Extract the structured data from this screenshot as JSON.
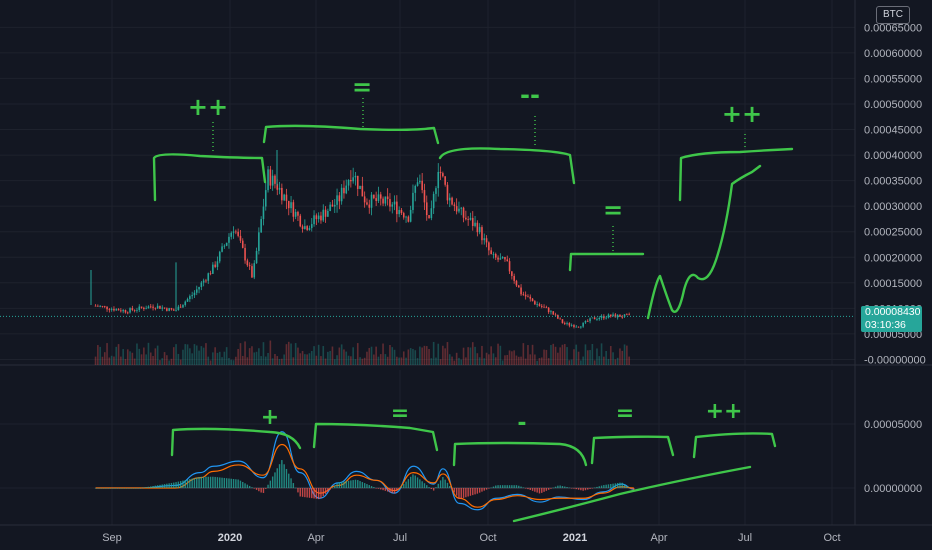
{
  "currency": "BTC",
  "last_price": "0.00008430",
  "countdown": "03:10:36",
  "colors": {
    "background": "#131722",
    "up": "#26a69a",
    "down": "#ef5350",
    "annotation": "#3fc64a",
    "macd": "#2196f3",
    "signal": "#ff6d00",
    "last_price": "#26a69a"
  },
  "chart_data": [
    {
      "type": "candlestick",
      "title": "",
      "x_ticks": [
        "Sep",
        "2020",
        "Apr",
        "Jul",
        "Oct",
        "2021",
        "Apr",
        "Jul",
        "Oct"
      ],
      "bold_x_ticks": [
        "2020",
        "2021"
      ],
      "y_ticks": [
        "0.00065000",
        "0.00060000",
        "0.00055000",
        "0.00050000",
        "0.00045000",
        "0.00040000",
        "0.00035000",
        "0.00030000",
        "0.00025000",
        "0.00020000",
        "0.00015000",
        "0.00010000",
        "0.00005000",
        "-0.00000000"
      ],
      "ylim": [
        -5e-06,
        0.00068
      ],
      "grid": true,
      "series": [
        {
          "x": [
            "2019-08-15",
            "2019-09-15",
            "2019-10-15",
            "2019-11-05",
            "2019-11-25",
            "2019-12-15",
            "2020-01-05",
            "2020-01-25",
            "2020-02-10",
            "2020-02-20",
            "2020-03-05",
            "2020-03-20",
            "2020-04-05",
            "2020-04-25",
            "2020-05-10",
            "2020-05-25",
            "2020-06-10",
            "2020-06-25",
            "2020-07-10",
            "2020-07-20",
            "2020-08-01",
            "2020-08-10",
            "2020-08-20",
            "2020-09-05",
            "2020-09-20",
            "2020-10-05",
            "2020-10-20",
            "2020-11-05",
            "2020-11-20",
            "2020-12-05",
            "2020-12-20",
            "2021-01-05",
            "2021-01-20",
            "2021-02-05",
            "2021-02-20",
            "2021-03-01"
          ],
          "close": [
            0.000105,
            9.5e-05,
            0.000105,
            9.5e-05,
            0.00013,
            0.00018,
            0.00026,
            0.00016,
            0.00036,
            0.00034,
            0.0003,
            0.00026,
            0.00028,
            0.00031,
            0.00037,
            0.00031,
            0.00031,
            0.0003,
            0.00028,
            0.00036,
            0.00026,
            0.00038,
            0.00032,
            0.00028,
            0.00026,
            0.0002,
            0.00019,
            0.00013,
            0.00011,
            9.5e-05,
            7e-05,
            6.5e-05,
            8e-05,
            8.5e-05,
            8.5e-05,
            8.43e-05
          ]
        }
      ]
    },
    {
      "type": "line",
      "title": "",
      "y_ticks": [
        "0.00005000",
        "0.00000000"
      ],
      "ylim": [
        -3.3e-05,
        9.2e-05
      ],
      "x": [
        "2019-08-15",
        "2019-10-01",
        "2019-11-05",
        "2019-12-01",
        "2019-12-15",
        "2020-01-10",
        "2020-02-05",
        "2020-02-25",
        "2020-03-15",
        "2020-04-05",
        "2020-04-25",
        "2020-05-15",
        "2020-06-05",
        "2020-06-25",
        "2020-07-15",
        "2020-08-05",
        "2020-08-15",
        "2020-09-01",
        "2020-09-20",
        "2020-10-10",
        "2020-11-01",
        "2020-11-25",
        "2020-12-15",
        "2021-01-10",
        "2021-01-31",
        "2021-02-20",
        "2021-03-05"
      ],
      "series": [
        {
          "values": [
            0.0,
            0.0,
            2e-06,
            1.2e-05,
            1.7e-05,
            2.1e-05,
            8e-06,
            4.4e-05,
            1.2e-05,
            -8e-06,
            4e-06,
            1.3e-05,
            6e-06,
            -4e-06,
            1.7e-05,
            3e-06,
            1.5e-05,
            -1.2e-05,
            -1.7e-05,
            -8e-06,
            -5e-06,
            -1.1e-05,
            -7e-06,
            -9e-06,
            -3e-06,
            3e-06,
            -1e-06
          ]
        },
        {
          "values": [
            0.0,
            0.0,
            0.0,
            8e-06,
            1.3e-05,
            1.8e-05,
            1e-05,
            3.4e-05,
            1.5e-05,
            -4e-06,
            2e-06,
            1e-05,
            6e-06,
            -2e-06,
            1.2e-05,
            4e-06,
            1.1e-05,
            -8e-06,
            -1.5e-05,
            -9e-06,
            -6e-06,
            -9e-06,
            -8e-06,
            -8e-06,
            -4e-06,
            1e-06,
            0.0
          ]
        }
      ]
    }
  ],
  "annotations": {
    "upper": [
      "++",
      "=",
      "--",
      "=",
      "++"
    ],
    "lower": [
      "+",
      "=",
      "-",
      "=",
      "++"
    ]
  }
}
